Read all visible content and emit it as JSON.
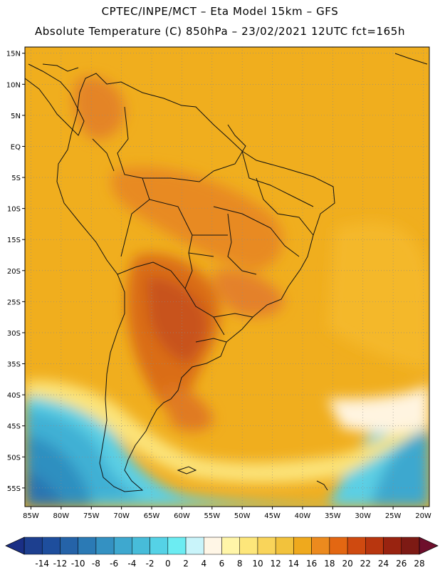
{
  "header": {
    "line1": "CPTEC/INPE/MCT –  Eta Model 15km – GFS",
    "line2": "Absolute Temperature (C) 850hPa – 23/02/2021 12UTC fct=165h"
  },
  "map": {
    "lat_labels": [
      "15N",
      "10N",
      "5N",
      "EQ",
      "5S",
      "10S",
      "15S",
      "20S",
      "25S",
      "30S",
      "35S",
      "40S",
      "45S",
      "50S",
      "55S"
    ],
    "lon_labels": [
      "85W",
      "80W",
      "75W",
      "70W",
      "65W",
      "60W",
      "55W",
      "50W",
      "45W",
      "40W",
      "35W",
      "30W",
      "25W",
      "20W"
    ],
    "lat_values": [
      15,
      10,
      5,
      0,
      -5,
      -10,
      -15,
      -20,
      -25,
      -30,
      -35,
      -40,
      -45,
      -50,
      -55
    ],
    "lon_values": [
      -85,
      -80,
      -75,
      -70,
      -65,
      -60,
      -55,
      -50,
      -45,
      -40,
      -35,
      -30,
      -25,
      -20
    ],
    "lat_range": [
      -58,
      16
    ],
    "lon_range": [
      -86,
      -19
    ]
  },
  "colorbar": {
    "labels": [
      "-14",
      "-12",
      "-10",
      "-8",
      "-6",
      "-4",
      "-2",
      "0",
      "2",
      "4",
      "6",
      "8",
      "10",
      "12",
      "14",
      "16",
      "18",
      "20",
      "22",
      "24",
      "26",
      "28"
    ],
    "colors": [
      "#1d3f8f",
      "#1e4e9d",
      "#2563a8",
      "#2b7ab5",
      "#3491c2",
      "#3ea8cf",
      "#47bcd9",
      "#55d2e6",
      "#6cecf2",
      "#c9f4fa",
      "#fff6e6",
      "#fff5a8",
      "#fde67a",
      "#f9d45a",
      "#f2c23c",
      "#efa91d",
      "#ec8a1e",
      "#e36712",
      "#cf4a10",
      "#b8360f",
      "#992310",
      "#7d1a14"
    ],
    "under_color": "#1a2f85",
    "over_color": "#6e0e2c"
  }
}
